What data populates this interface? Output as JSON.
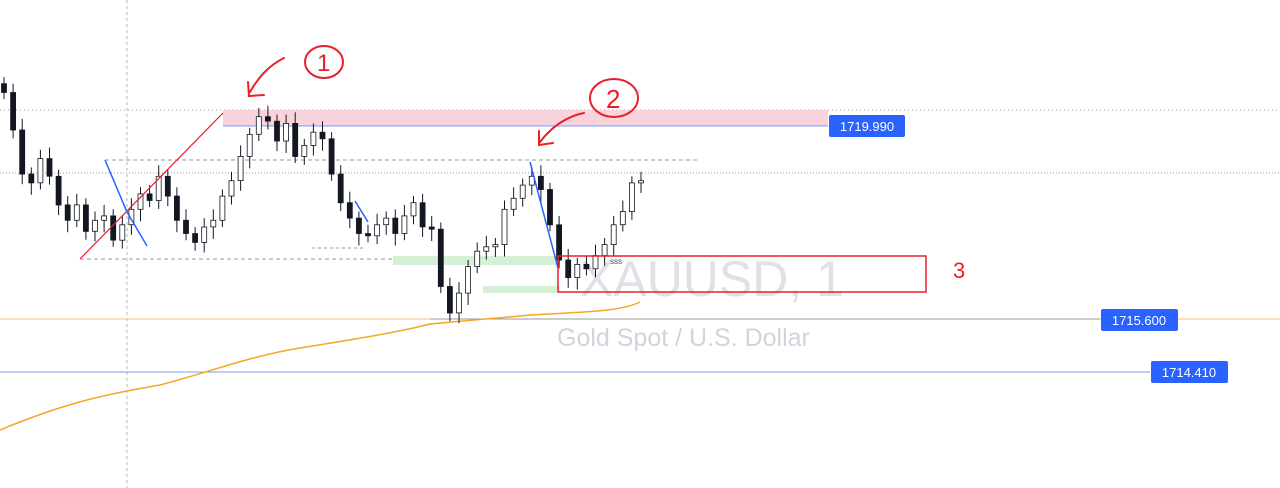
{
  "symbol": "XAUUSD, 1",
  "description": "Gold Spot / U.S. Dollar",
  "colors": {
    "candle": "#131722",
    "label_bg": "#2962ff",
    "ma_line": "#f5a623",
    "h_line_blue": "#7b9ef0",
    "annotation_red": "#e8202a",
    "zone_pink": "#f9d3dc",
    "zone_green": "#d6f0d6",
    "trend_blue": "#2962ff",
    "watermark": "#dfe1e6"
  },
  "chart_data": {
    "type": "candlestick",
    "title": "XAUUSD, 1",
    "subtitle": "Gold Spot / U.S. Dollar",
    "price_axis": "right",
    "price_labels": [
      {
        "id": "resistance",
        "value": "1719.990"
      },
      {
        "id": "ma",
        "value": "1715.600"
      },
      {
        "id": "support",
        "value": "1714.410"
      }
    ],
    "annotations": [
      "1",
      "2",
      "3"
    ],
    "marker_text": "SSS",
    "closes": [
      1720.75,
      1719.9,
      1718.9,
      1718.7,
      1719.25,
      1718.85,
      1718.2,
      1717.85,
      1718.2,
      1717.6,
      1717.85,
      1717.95,
      1717.4,
      1717.75,
      1718.1,
      1718.45,
      1718.3,
      1718.85,
      1718.4,
      1717.85,
      1717.55,
      1717.35,
      1717.7,
      1717.85,
      1718.4,
      1718.75,
      1719.3,
      1719.8,
      1720.2,
      1720.1,
      1719.65,
      1720.05,
      1719.3,
      1719.55,
      1719.85,
      1719.7,
      1718.9,
      1718.25,
      1717.9,
      1717.55,
      1717.5,
      1717.75,
      1717.9,
      1717.55,
      1717.95,
      1718.25,
      1717.7,
      1717.65,
      1716.35,
      1715.75,
      1716.2,
      1716.8,
      1717.15,
      1717.25,
      1717.3,
      1718.1,
      1718.35,
      1718.65,
      1718.85,
      1718.55,
      1717.75,
      1716.95,
      1716.55,
      1716.85,
      1716.75,
      1717.05,
      1717.3,
      1717.75,
      1718.05,
      1718.7,
      1718.75
    ]
  }
}
